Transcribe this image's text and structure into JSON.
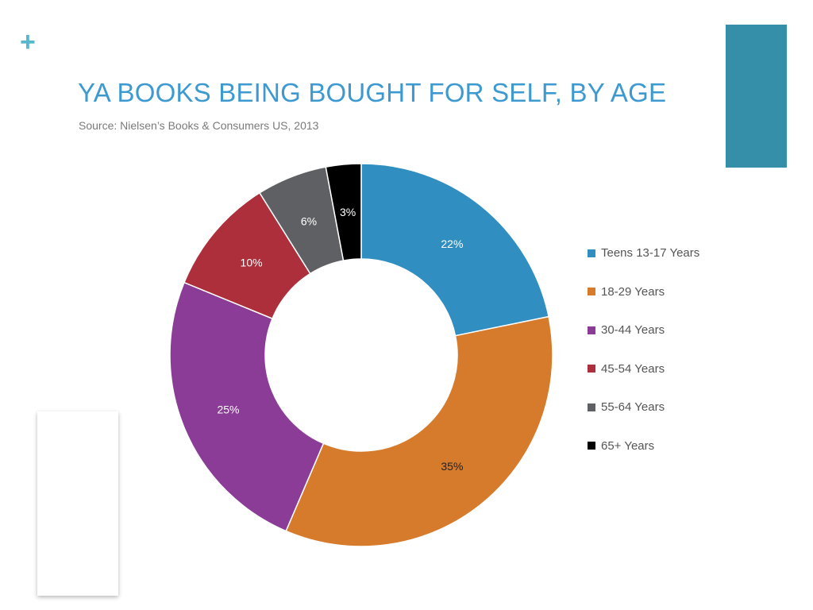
{
  "slide": {
    "plus": "+",
    "accent_color": "#368fa8",
    "plus_color": "#57b7cc"
  },
  "chart_data": {
    "type": "pie",
    "style": "donut",
    "title": "YA BOOKS BEING BOUGHT FOR SELF, BY AGE",
    "subtitle": "Source: Nielsen’s Books & Consumers US, 2013",
    "legend_position": "right",
    "slices": [
      {
        "name": "Teens 13-17 Years",
        "value": 22,
        "label": "22%",
        "color": "#318ec0"
      },
      {
        "name": "18-29 Years",
        "value": 35,
        "label": "35%",
        "color": "#d67b2b"
      },
      {
        "name": "30-44 Years",
        "value": 25,
        "label": "25%",
        "color": "#8a3c96"
      },
      {
        "name": "45-54 Years",
        "value": 10,
        "label": "10%",
        "color": "#ac2f3b"
      },
      {
        "name": "55-64 Years",
        "value": 6,
        "label": "6%",
        "color": "#5f6063"
      },
      {
        "name": "65+ Years",
        "value": 3,
        "label": "3%",
        "color": "#000000"
      }
    ]
  }
}
